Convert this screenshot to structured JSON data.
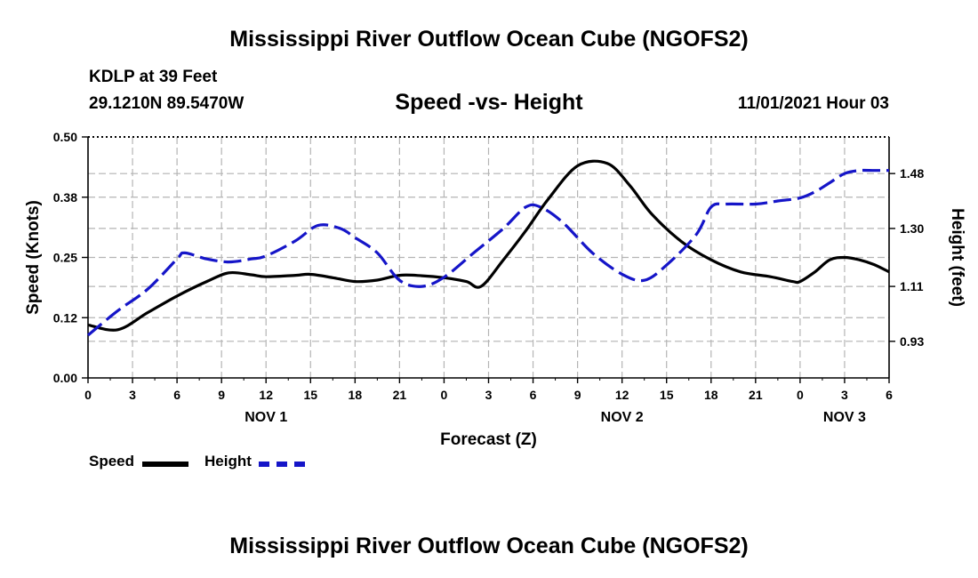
{
  "header": {
    "title": "Mississippi River Outflow Ocean Cube (NGOFS2)",
    "station": "KDLP at 39 Feet",
    "coordinates": "29.1210N  89.5470W",
    "subtitle": "Speed -vs- Height",
    "datetime": "11/01/2021 Hour 03"
  },
  "footer": {
    "title": "Mississippi River Outflow Ocean Cube (NGOFS2)"
  },
  "legend": {
    "speed_label": "Speed",
    "height_label": "Height"
  },
  "colors": {
    "speed": "#000000",
    "height": "#1515c8",
    "grid": "#b4b4b4"
  },
  "chart_data": {
    "type": "line",
    "title": "Speed -vs- Height",
    "xlabel": "Forecast (Z)",
    "ylabel": "Speed (Knots)",
    "y2label": "Height (feet)",
    "x_unit": "hours from Nov 1 00Z",
    "xlim": [
      0,
      54
    ],
    "ylim": [
      0,
      0.5
    ],
    "y2lim": [
      0.81,
      1.6
    ],
    "x_ticks": [
      0,
      3,
      6,
      9,
      12,
      15,
      18,
      21,
      24,
      27,
      30,
      33,
      36,
      39,
      42,
      45,
      48,
      51,
      54
    ],
    "x_tick_labels": [
      "0",
      "3",
      "6",
      "9",
      "12",
      "15",
      "18",
      "21",
      "0",
      "3",
      "6",
      "9",
      "12",
      "15",
      "18",
      "21",
      "0",
      "3",
      "6"
    ],
    "day_labels": [
      {
        "x": 12,
        "text": "NOV 1"
      },
      {
        "x": 36,
        "text": "NOV 2"
      },
      {
        "x": 51,
        "text": "NOV 3"
      }
    ],
    "y_ticks": [
      0.0,
      0.125,
      0.25,
      0.375,
      0.5
    ],
    "y_tick_labels": [
      "0.00",
      "0.12",
      "0.25",
      "0.38",
      "0.50"
    ],
    "y2_ticks": [
      0.93,
      1.11,
      1.3,
      1.48
    ],
    "y2_tick_labels": [
      "0.93",
      "1.11",
      "1.30",
      "1.48"
    ],
    "grid": true,
    "series": [
      {
        "name": "Speed",
        "axis": "left",
        "style": "solid",
        "x": [
          0,
          2,
          4,
          6,
          8,
          9.5,
          11,
          12,
          14,
          15,
          16.5,
          18,
          19.5,
          21,
          22.5,
          24,
          25.5,
          26.5,
          28,
          29.5,
          31,
          33,
          35,
          36.5,
          38,
          40,
          42,
          44,
          46,
          47.5,
          48,
          49,
          50,
          51,
          52,
          53,
          54
        ],
        "y": [
          0.11,
          0.1,
          0.135,
          0.17,
          0.2,
          0.218,
          0.214,
          0.21,
          0.213,
          0.215,
          0.208,
          0.2,
          0.203,
          0.213,
          0.212,
          0.208,
          0.2,
          0.19,
          0.245,
          0.305,
          0.37,
          0.44,
          0.445,
          0.4,
          0.34,
          0.283,
          0.245,
          0.22,
          0.21,
          0.2,
          0.2,
          0.22,
          0.245,
          0.25,
          0.245,
          0.235,
          0.22
        ]
      },
      {
        "name": "Height",
        "axis": "right",
        "style": "dashed",
        "x": [
          0,
          2,
          4,
          6,
          6.5,
          8,
          9.5,
          11,
          12,
          14,
          15.5,
          17,
          18,
          19.5,
          21,
          22.5,
          24,
          26,
          28,
          29.5,
          30.5,
          32,
          34,
          36,
          37.5,
          39,
          41,
          42,
          43,
          45,
          46.5,
          48,
          49,
          50,
          51,
          52,
          53,
          54
        ],
        "y": [
          0.95,
          1.03,
          1.1,
          1.2,
          1.22,
          1.2,
          1.19,
          1.2,
          1.21,
          1.26,
          1.31,
          1.3,
          1.27,
          1.22,
          1.13,
          1.11,
          1.14,
          1.22,
          1.3,
          1.37,
          1.37,
          1.32,
          1.22,
          1.15,
          1.13,
          1.18,
          1.28,
          1.37,
          1.38,
          1.38,
          1.39,
          1.4,
          1.42,
          1.45,
          1.48,
          1.49,
          1.49,
          1.49
        ]
      }
    ]
  }
}
